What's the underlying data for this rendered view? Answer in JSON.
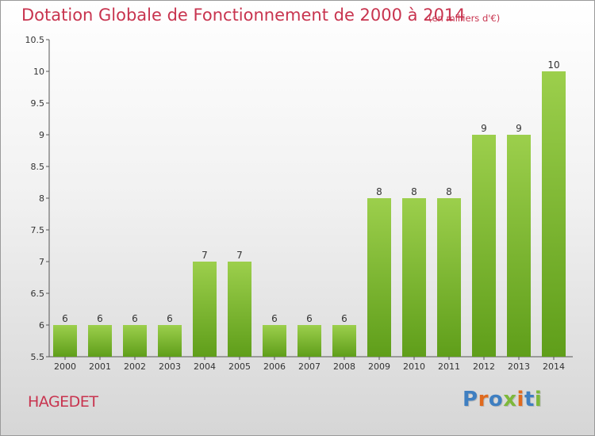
{
  "header": {
    "title": "Dotation Globale de Fonctionnement de 2000 à 2014",
    "subtitle": "(en milliers d'€)"
  },
  "footer": {
    "commune": "HAGEDET",
    "logo_text": "Proxiti",
    "logo_colors": [
      "#3f7fc1",
      "#e06a1e",
      "#3f7fc1",
      "#7db83a",
      "#e06a1e",
      "#3f7fc1",
      "#7db83a"
    ]
  },
  "colors": {
    "bar_light": "#9ccf4c",
    "bar_dark": "#5f9e1a",
    "title": "#c8344f"
  },
  "chart_data": {
    "type": "bar",
    "title": "Dotation Globale de Fonctionnement de 2000 à 2014",
    "subtitle": "(en milliers d'€)",
    "xlabel": "",
    "ylabel": "",
    "categories": [
      "2000",
      "2001",
      "2002",
      "2003",
      "2004",
      "2005",
      "2006",
      "2007",
      "2008",
      "2009",
      "2010",
      "2011",
      "2012",
      "2013",
      "2014"
    ],
    "values": [
      6,
      6,
      6,
      6,
      7,
      7,
      6,
      6,
      6,
      8,
      8,
      8,
      9,
      9,
      10
    ],
    "data_labels": [
      "6",
      "6",
      "6",
      "6",
      "7",
      "7",
      "6",
      "6",
      "6",
      "8",
      "8",
      "8",
      "9",
      "9",
      "10"
    ],
    "ylim": [
      5.5,
      10.5
    ],
    "yticks": [
      5.5,
      6,
      6.5,
      7,
      7.5,
      8,
      8.5,
      9,
      9.5,
      10,
      10.5
    ],
    "ytick_labels": [
      "5.5",
      "6",
      "6.5",
      "7",
      "7.5",
      "8",
      "8.5",
      "9",
      "9.5",
      "10",
      "10.5"
    ],
    "grid": false,
    "legend": "none"
  }
}
